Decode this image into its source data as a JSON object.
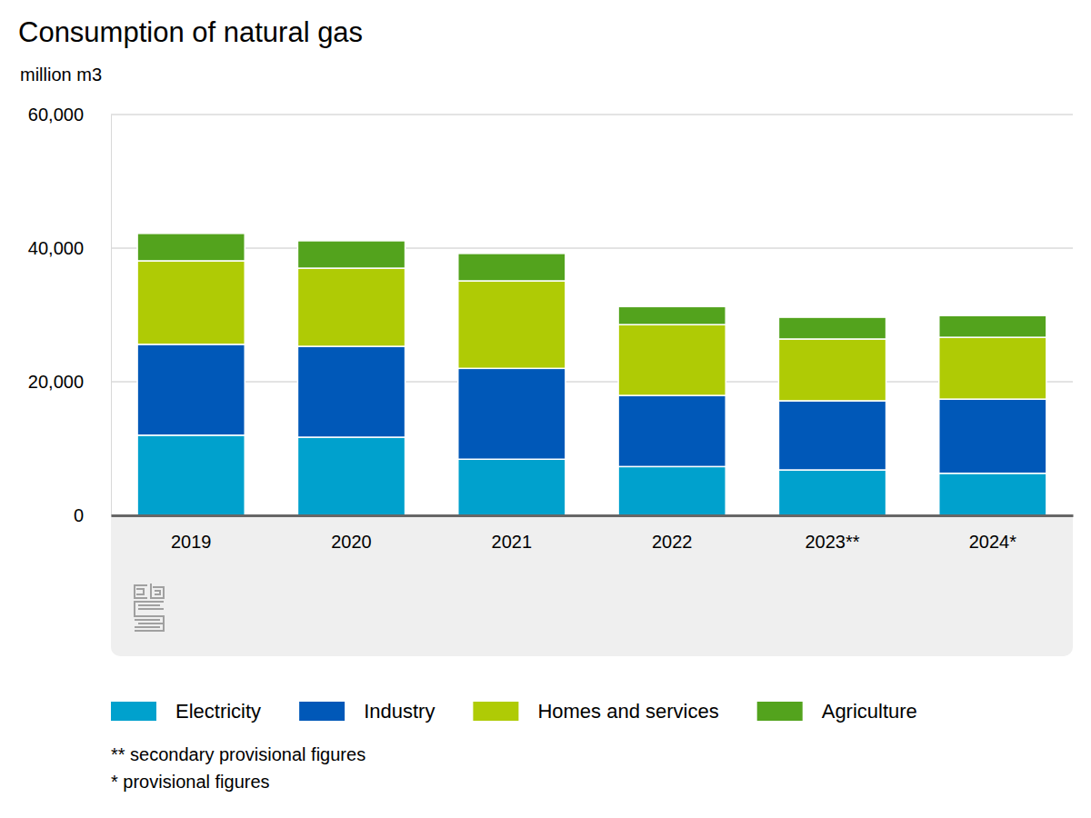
{
  "chart_data": {
    "type": "bar",
    "stacked": true,
    "grid": true,
    "legend": "bottom",
    "title": "Consumption of natural gas",
    "y_label": "million m3",
    "categories": [
      "2019",
      "2020",
      "2021",
      "2022",
      "2023**",
      "2024*"
    ],
    "series": [
      {
        "name": "Electricity",
        "color": "#00a1cd",
        "values": [
          12000,
          11700,
          8400,
          7300,
          6800,
          6300
        ]
      },
      {
        "name": "Industry",
        "color": "#0058b8",
        "values": [
          13600,
          13600,
          13600,
          10650,
          10350,
          11100
        ]
      },
      {
        "name": "Homes and services",
        "color": "#afcb05",
        "values": [
          12500,
          11700,
          13100,
          10600,
          9250,
          9250
        ]
      },
      {
        "name": "Agriculture",
        "color": "#53a31d",
        "values": [
          4100,
          4100,
          4100,
          2700,
          3250,
          3250
        ]
      }
    ],
    "ylim": [
      0,
      60000
    ],
    "yticks": [
      0,
      {
        "value": 20000,
        "label": "20,000"
      },
      {
        "value": 40000,
        "label": "40,000"
      },
      {
        "value": 60000,
        "label": "60,000"
      }
    ],
    "annotations": [
      "** secondary provisional figures",
      "* provisional figures"
    ]
  }
}
